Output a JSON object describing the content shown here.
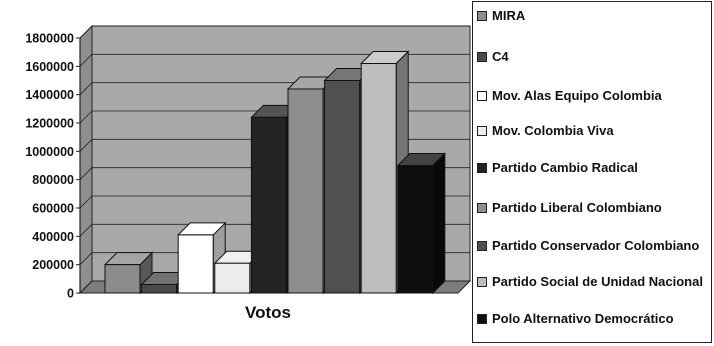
{
  "chart_data": {
    "type": "bar",
    "categories": [
      "Votos"
    ],
    "xlabel": "Votos",
    "ylim": [
      0,
      1800000
    ],
    "yticks": [
      "0",
      "200000",
      "400000",
      "600000",
      "800000",
      "1000000",
      "1200000",
      "1400000",
      "1600000",
      "1800000"
    ],
    "grid": true,
    "legend_position": "right",
    "series": [
      {
        "name": "MIRA",
        "values": [
          200000
        ],
        "color": "#8c8c8c"
      },
      {
        "name": "C4",
        "values": [
          60000
        ],
        "color": "#4a4a4a"
      },
      {
        "name": "Mov. Alas Equipo Colombia",
        "values": [
          410000
        ],
        "color": "#ffffff"
      },
      {
        "name": "Mov. Colombia Viva",
        "values": [
          210000
        ],
        "color": "#ececec"
      },
      {
        "name": "Partido Cambio Radical",
        "values": [
          1240000
        ],
        "color": "#242424"
      },
      {
        "name": "Partido Liberal Colombiano",
        "values": [
          1440000
        ],
        "color": "#8e8e8e"
      },
      {
        "name": "Partido Conservador Colombiano",
        "values": [
          1500000
        ],
        "color": "#505050"
      },
      {
        "name": "Partido Social de Unidad Nacional",
        "values": [
          1620000
        ],
        "color": "#bdbdbd"
      },
      {
        "name": "Polo Alternativo Democrático",
        "values": [
          900000
        ],
        "color": "#0e0e0e"
      }
    ]
  }
}
